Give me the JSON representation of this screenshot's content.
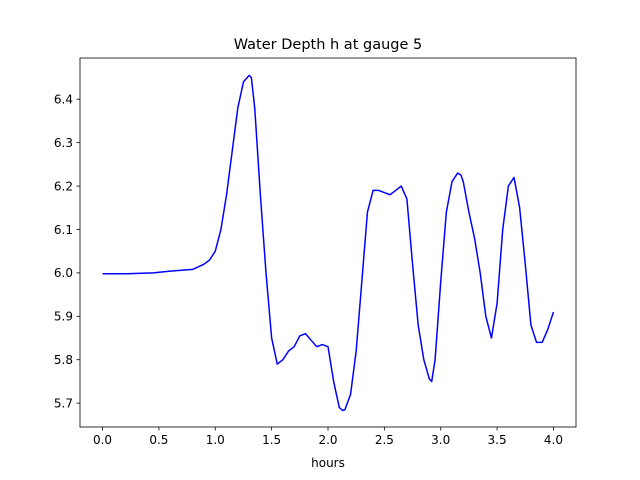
{
  "chart_data": {
    "type": "line",
    "title": "Water Depth h at gauge 5",
    "xlabel": "hours",
    "ylabel": "",
    "xlim": [
      -0.2,
      4.2
    ],
    "ylim": [
      5.645,
      6.495
    ],
    "xticks": [
      0.0,
      0.5,
      1.0,
      1.5,
      2.0,
      2.5,
      3.0,
      3.5,
      4.0
    ],
    "xtick_labels": [
      "0.0",
      "0.5",
      "1.0",
      "1.5",
      "2.0",
      "2.5",
      "3.0",
      "3.5",
      "4.0"
    ],
    "yticks": [
      5.7,
      5.8,
      5.9,
      6.0,
      6.1,
      6.2,
      6.3,
      6.4
    ],
    "ytick_labels": [
      "5.7",
      "5.8",
      "5.9",
      "6.0",
      "6.1",
      "6.2",
      "6.3",
      "6.4"
    ],
    "grid": false,
    "series": [
      {
        "color": "#0000ff",
        "x": [
          0.0,
          0.2,
          0.45,
          0.6,
          0.8,
          0.9,
          0.95,
          1.0,
          1.05,
          1.1,
          1.15,
          1.2,
          1.25,
          1.3,
          1.32,
          1.35,
          1.4,
          1.45,
          1.5,
          1.55,
          1.6,
          1.65,
          1.7,
          1.75,
          1.8,
          1.85,
          1.9,
          1.95,
          2.0,
          2.05,
          2.1,
          2.13,
          2.15,
          2.2,
          2.25,
          2.3,
          2.35,
          2.4,
          2.45,
          2.5,
          2.55,
          2.6,
          2.65,
          2.7,
          2.75,
          2.8,
          2.85,
          2.9,
          2.92,
          2.95,
          3.0,
          3.05,
          3.1,
          3.15,
          3.18,
          3.2,
          3.25,
          3.3,
          3.35,
          3.4,
          3.45,
          3.5,
          3.55,
          3.6,
          3.65,
          3.7,
          3.75,
          3.8,
          3.85,
          3.9,
          3.95,
          4.0
        ],
        "y": [
          5.998,
          5.998,
          6.0,
          6.004,
          6.008,
          6.02,
          6.03,
          6.05,
          6.1,
          6.18,
          6.28,
          6.38,
          6.44,
          6.455,
          6.45,
          6.38,
          6.18,
          6.0,
          5.85,
          5.79,
          5.8,
          5.82,
          5.83,
          5.855,
          5.86,
          5.845,
          5.83,
          5.835,
          5.83,
          5.75,
          5.69,
          5.683,
          5.685,
          5.72,
          5.82,
          5.98,
          6.14,
          6.19,
          6.19,
          6.185,
          6.18,
          6.19,
          6.2,
          6.17,
          6.02,
          5.88,
          5.8,
          5.755,
          5.75,
          5.8,
          5.98,
          6.14,
          6.21,
          6.23,
          6.225,
          6.21,
          6.14,
          6.08,
          6.0,
          5.9,
          5.85,
          5.93,
          6.1,
          6.2,
          6.22,
          6.15,
          6.02,
          5.88,
          5.84,
          5.84,
          5.87,
          5.91
        ]
      }
    ]
  }
}
